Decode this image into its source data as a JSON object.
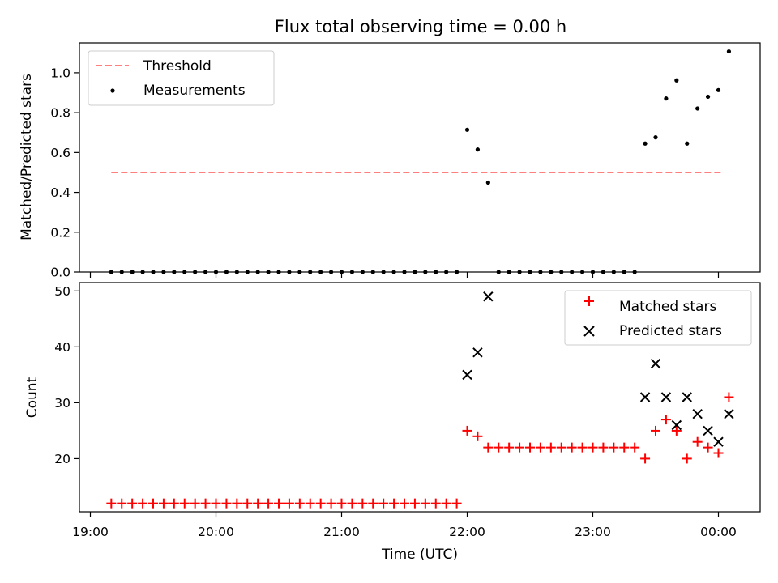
{
  "chart_data": [
    {
      "type": "line",
      "title": "Flux total observing time = 0.00 h",
      "ylabel": "Matched/Predicted stars",
      "xlabel": "",
      "ylim": [
        0,
        1.15
      ],
      "yticks": [
        "0.0",
        "0.2",
        "0.4",
        "0.6",
        "0.8",
        "1.0"
      ],
      "legend_position": "top-left",
      "grid": false,
      "series": [
        {
          "name": "Threshold",
          "style": "dashed",
          "color": "#ff7f7f",
          "x": [
            "19:10",
            "00:02"
          ],
          "values": [
            0.5,
            0.5
          ]
        },
        {
          "name": "Measurements",
          "style": "scatter",
          "color": "#000000",
          "x": [
            "19:10",
            "19:15",
            "19:20",
            "19:25",
            "19:30",
            "19:35",
            "19:40",
            "19:45",
            "19:50",
            "19:55",
            "20:00",
            "20:05",
            "20:10",
            "20:15",
            "20:20",
            "20:25",
            "20:30",
            "20:35",
            "20:40",
            "20:45",
            "20:50",
            "20:55",
            "21:00",
            "21:05",
            "21:10",
            "21:15",
            "21:20",
            "21:25",
            "21:30",
            "21:35",
            "21:40",
            "21:45",
            "21:50",
            "21:55",
            "22:00",
            "22:05",
            "22:10",
            "22:15",
            "22:20",
            "22:25",
            "22:30",
            "22:35",
            "22:40",
            "22:45",
            "22:50",
            "22:55",
            "23:00",
            "23:05",
            "23:10",
            "23:15",
            "23:20",
            "23:25",
            "23:30",
            "23:35",
            "23:40",
            "23:45",
            "23:50",
            "23:55",
            "00:00",
            "00:05"
          ],
          "values": [
            0,
            0,
            0,
            0,
            0,
            0,
            0,
            0,
            0,
            0,
            0,
            0,
            0,
            0,
            0,
            0,
            0,
            0,
            0,
            0,
            0,
            0,
            0,
            0,
            0,
            0,
            0,
            0,
            0,
            0,
            0,
            0,
            0,
            0,
            0.714,
            0.615,
            0.449,
            0,
            0,
            0,
            0,
            0,
            0,
            0,
            0,
            0,
            0,
            0,
            0,
            0,
            0,
            0.645,
            0.676,
            0.871,
            0.962,
            0.645,
            0.821,
            0.88,
            0.913,
            1.107
          ]
        }
      ]
    },
    {
      "type": "scatter",
      "title": "",
      "xlabel": "Time (UTC)",
      "ylabel": "Count",
      "ylim": [
        10.5,
        51.5
      ],
      "yticks": [
        "20",
        "30",
        "40",
        "50"
      ],
      "xticks": [
        "19:00",
        "20:00",
        "21:00",
        "22:00",
        "23:00",
        "00:00"
      ],
      "legend_position": "top-right",
      "grid": false,
      "series": [
        {
          "name": "Matched stars",
          "marker": "plus",
          "color": "#ff0000",
          "x": [
            "19:10",
            "19:15",
            "19:20",
            "19:25",
            "19:30",
            "19:35",
            "19:40",
            "19:45",
            "19:50",
            "19:55",
            "20:00",
            "20:05",
            "20:10",
            "20:15",
            "20:20",
            "20:25",
            "20:30",
            "20:35",
            "20:40",
            "20:45",
            "20:50",
            "20:55",
            "21:00",
            "21:05",
            "21:10",
            "21:15",
            "21:20",
            "21:25",
            "21:30",
            "21:35",
            "21:40",
            "21:45",
            "21:50",
            "21:55",
            "22:00",
            "22:05",
            "22:10",
            "22:15",
            "22:20",
            "22:25",
            "22:30",
            "22:35",
            "22:40",
            "22:45",
            "22:50",
            "22:55",
            "23:00",
            "23:05",
            "23:10",
            "23:15",
            "23:20",
            "23:25",
            "23:30",
            "23:35",
            "23:40",
            "23:45",
            "23:50",
            "23:55",
            "00:00",
            "00:05"
          ],
          "values": [
            12,
            12,
            12,
            12,
            12,
            12,
            12,
            12,
            12,
            12,
            12,
            12,
            12,
            12,
            12,
            12,
            12,
            12,
            12,
            12,
            12,
            12,
            12,
            12,
            12,
            12,
            12,
            12,
            12,
            12,
            12,
            12,
            12,
            12,
            25,
            24,
            22,
            22,
            22,
            22,
            22,
            22,
            22,
            22,
            22,
            22,
            22,
            22,
            22,
            22,
            22,
            20,
            25,
            27,
            25,
            20,
            23,
            22,
            21,
            31
          ]
        },
        {
          "name": "Predicted stars",
          "marker": "x",
          "color": "#000000",
          "x": [
            "22:00",
            "22:05",
            "22:10",
            "23:25",
            "23:30",
            "23:35",
            "23:40",
            "23:45",
            "23:50",
            "23:55",
            "00:00",
            "00:05"
          ],
          "values": [
            35,
            39,
            49,
            31,
            37,
            31,
            26,
            31,
            28,
            25,
            23,
            28
          ]
        }
      ]
    }
  ]
}
